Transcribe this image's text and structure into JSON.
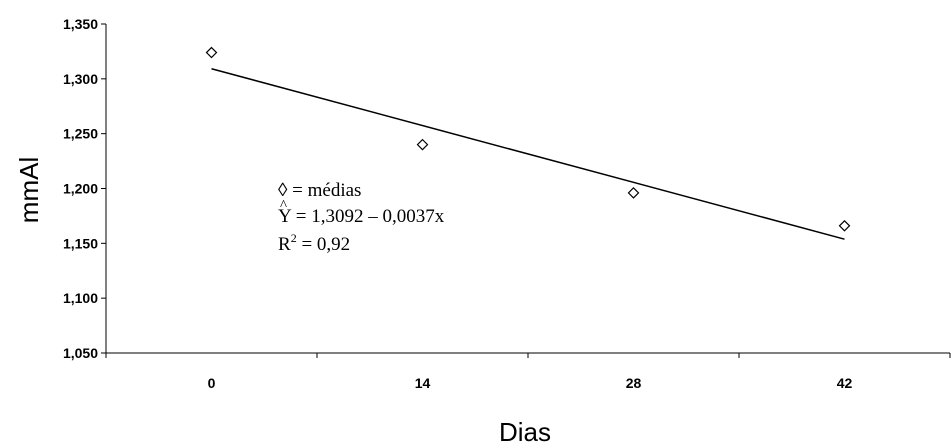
{
  "chart_data": {
    "type": "scatter",
    "title": "",
    "xlabel": "Dias",
    "ylabel": "mmAl",
    "x_ticks": [
      "0",
      "14",
      "28",
      "42"
    ],
    "y_ticks": [
      "1,050",
      "1,100",
      "1,150",
      "1,200",
      "1,250",
      "1,300",
      "1,350"
    ],
    "ylim": [
      1.05,
      1.35
    ],
    "grid": false,
    "legend": "none",
    "series": [
      {
        "marker": "diamond-open",
        "x": [
          0,
          14,
          28,
          42
        ],
        "y": [
          1.324,
          1.24,
          1.196,
          1.166
        ]
      }
    ],
    "trendline": {
      "intercept": 1.3092,
      "slope": -0.0037,
      "x_range": [
        0,
        42
      ]
    },
    "annotations": {
      "line1": "◊ = médias",
      "line2_prefix": "Y",
      "line2_rest": " = 1,3092 – 0,0037x",
      "line3_prefix": "R",
      "line3_sup": "2",
      "line3_rest": " = 0,92"
    }
  }
}
